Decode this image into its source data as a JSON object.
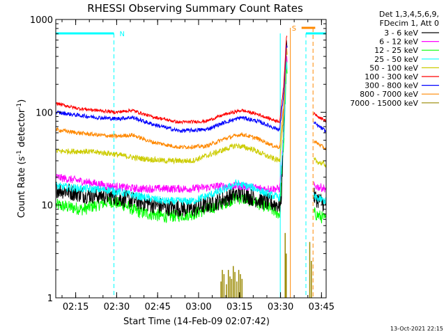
{
  "chart_data": {
    "type": "line",
    "title": "RHESSI Observing Summary Count Rates",
    "xlabel": "Start Time (14-Feb-09 02:07:42)",
    "ylabel_main": "Count Rate (s",
    "ylabel_sup1": "-1",
    "ylabel_mid": " detector",
    "ylabel_sup2": "-1",
    "ylabel_end": ")",
    "yscale": "log",
    "ylim": [
      1,
      1000
    ],
    "xlim_minutes": [
      0,
      99
    ],
    "y_ticks": [
      {
        "label": "1",
        "value": 1
      },
      {
        "label": "10",
        "value": 10
      },
      {
        "label": "100",
        "value": 100
      },
      {
        "label": "1000",
        "value": 1000
      }
    ],
    "x_ticks": [
      {
        "label": "02:15",
        "minutes": 7.3
      },
      {
        "label": "02:30",
        "minutes": 22.3
      },
      {
        "label": "02:45",
        "minutes": 37.3
      },
      {
        "label": "03:00",
        "minutes": 52.3
      },
      {
        "label": "03:15",
        "minutes": 67.3
      },
      {
        "label": "03:30",
        "minutes": 82.3
      },
      {
        "label": "03:45",
        "minutes": 97.3
      }
    ],
    "legend_header": [
      "Det 1,3,4,5,6,9,",
      "FDecim 1, Att 0"
    ],
    "series": [
      {
        "name": "3 - 6 keV",
        "color": "#000000",
        "baseline": [
          [
            0,
            15
          ],
          [
            10,
            13
          ],
          [
            20,
            12.5
          ],
          [
            30,
            11
          ],
          [
            40,
            9.5
          ],
          [
            50,
            9
          ],
          [
            60,
            11
          ],
          [
            64,
            12.5
          ],
          [
            68,
            13.5
          ],
          [
            72,
            12
          ],
          [
            76,
            11
          ],
          [
            82,
            10
          ],
          [
            82.5,
            10
          ],
          [
            83.5,
            80
          ],
          [
            84.5,
            600
          ],
          [
            87,
            100
          ],
          [
            89,
            20
          ],
          [
            95,
            12
          ],
          [
            99,
            10
          ]
        ],
        "gap": [
          84.8,
          94.5
        ],
        "noise": 0.22
      },
      {
        "name": "6 - 12 keV",
        "color": "#ff00ff",
        "baseline": [
          [
            0,
            20
          ],
          [
            10,
            18
          ],
          [
            20,
            16
          ],
          [
            30,
            15
          ],
          [
            40,
            15
          ],
          [
            50,
            15
          ],
          [
            60,
            16
          ],
          [
            68,
            16
          ],
          [
            76,
            15
          ],
          [
            82,
            15
          ],
          [
            83.5,
            60
          ],
          [
            84.5,
            400
          ],
          [
            87,
            60
          ],
          [
            89,
            18
          ],
          [
            95,
            16
          ],
          [
            99,
            15
          ]
        ],
        "gap": [
          84.8,
          94.5
        ],
        "noise": 0.1
      },
      {
        "name": "12 - 25 keV",
        "color": "#00ff00",
        "baseline": [
          [
            0,
            10
          ],
          [
            10,
            9
          ],
          [
            15,
            10
          ],
          [
            20,
            11
          ],
          [
            25,
            10
          ],
          [
            30,
            8.5
          ],
          [
            40,
            7.5
          ],
          [
            50,
            8
          ],
          [
            60,
            10
          ],
          [
            66,
            12
          ],
          [
            70,
            11.5
          ],
          [
            76,
            10
          ],
          [
            82,
            8
          ],
          [
            83.5,
            50
          ],
          [
            84.5,
            300
          ],
          [
            87,
            50
          ],
          [
            89,
            12
          ],
          [
            95,
            8
          ],
          [
            99,
            7
          ]
        ],
        "gap": [
          84.8,
          94.5
        ],
        "noise": 0.16
      },
      {
        "name": "25 - 50 keV",
        "color": "#00ffff",
        "baseline": [
          [
            0,
            16
          ],
          [
            10,
            15
          ],
          [
            20,
            14.5
          ],
          [
            30,
            12.5
          ],
          [
            40,
            11
          ],
          [
            50,
            11
          ],
          [
            60,
            14
          ],
          [
            66,
            17
          ],
          [
            72,
            15.5
          ],
          [
            78,
            13
          ],
          [
            82,
            12
          ],
          [
            83.5,
            60
          ],
          [
            84.5,
            350
          ],
          [
            87,
            60
          ],
          [
            89,
            16
          ],
          [
            95,
            12
          ],
          [
            99,
            11
          ]
        ],
        "gap": [
          84.8,
          94.5
        ],
        "noise": 0.1
      },
      {
        "name": "50 - 100 keV",
        "color": "#cccc00",
        "baseline": [
          [
            0,
            38
          ],
          [
            10,
            38
          ],
          [
            20,
            36
          ],
          [
            30,
            32
          ],
          [
            40,
            30
          ],
          [
            50,
            30
          ],
          [
            60,
            38
          ],
          [
            66,
            44
          ],
          [
            72,
            40
          ],
          [
            78,
            33
          ],
          [
            82,
            30
          ],
          [
            83.5,
            100
          ],
          [
            84.5,
            450
          ],
          [
            87,
            100
          ],
          [
            89,
            38
          ],
          [
            95,
            30
          ],
          [
            99,
            27
          ]
        ],
        "gap": [
          84.8,
          94.5
        ],
        "noise": 0.07
      },
      {
        "name": "100 - 300 keV",
        "color": "#ff0000",
        "baseline": [
          [
            0,
            125
          ],
          [
            8,
            110
          ],
          [
            15,
            105
          ],
          [
            22,
            100
          ],
          [
            28,
            105
          ],
          [
            35,
            90
          ],
          [
            45,
            78
          ],
          [
            55,
            80
          ],
          [
            62,
            95
          ],
          [
            68,
            105
          ],
          [
            74,
            95
          ],
          [
            80,
            82
          ],
          [
            82,
            80
          ],
          [
            83.5,
            200
          ],
          [
            84.5,
            700
          ],
          [
            87,
            200
          ],
          [
            89,
            120
          ],
          [
            95,
            95
          ],
          [
            99,
            80
          ]
        ],
        "gap": [
          84.8,
          94.5
        ],
        "noise": 0.04
      },
      {
        "name": "300 - 800 keV",
        "color": "#0000ff",
        "baseline": [
          [
            0,
            100
          ],
          [
            8,
            93
          ],
          [
            15,
            88
          ],
          [
            22,
            85
          ],
          [
            28,
            88
          ],
          [
            35,
            75
          ],
          [
            45,
            63
          ],
          [
            55,
            65
          ],
          [
            62,
            78
          ],
          [
            68,
            88
          ],
          [
            74,
            80
          ],
          [
            80,
            68
          ],
          [
            82,
            65
          ],
          [
            83.5,
            160
          ],
          [
            84.5,
            550
          ],
          [
            87,
            160
          ],
          [
            89,
            95
          ],
          [
            95,
            75
          ],
          [
            99,
            62
          ]
        ],
        "gap": [
          84.8,
          94.5
        ],
        "noise": 0.05
      },
      {
        "name": "800 - 7000 keV",
        "color": "#ff8800",
        "baseline": [
          [
            0,
            65
          ],
          [
            8,
            60
          ],
          [
            15,
            57
          ],
          [
            22,
            55
          ],
          [
            28,
            57
          ],
          [
            35,
            48
          ],
          [
            45,
            42
          ],
          [
            55,
            43
          ],
          [
            62,
            52
          ],
          [
            68,
            58
          ],
          [
            74,
            52
          ],
          [
            80,
            43
          ],
          [
            82,
            42
          ],
          [
            83.5,
            120
          ],
          [
            84.5,
            500
          ],
          [
            87,
            120
          ],
          [
            89,
            60
          ],
          [
            95,
            48
          ],
          [
            99,
            40
          ]
        ],
        "gap": [
          84.8,
          94.5
        ],
        "noise": 0.05
      },
      {
        "name": "7000 - 15000 keV",
        "color": "#998800",
        "baseline": [],
        "gap": [
          84.8,
          94.5
        ],
        "noise": 0
      }
    ],
    "brown_spikes": [
      [
        60.5,
        1.5
      ],
      [
        61,
        2.0
      ],
      [
        61.6,
        1.8
      ],
      [
        62.5,
        1.4
      ],
      [
        63.2,
        2.0
      ],
      [
        63.8,
        1.7
      ],
      [
        64.4,
        1.6
      ],
      [
        65,
        2.2
      ],
      [
        65.6,
        1.9
      ],
      [
        66.3,
        1.5
      ],
      [
        67,
        2.0
      ],
      [
        67.6,
        1.8
      ],
      [
        68.2,
        1.6
      ],
      [
        84,
        5.0
      ],
      [
        84.4,
        3.0
      ],
      [
        93,
        4.0
      ],
      [
        93.6,
        2.5
      ]
    ],
    "flags": {
      "night_label": "N",
      "saa_label": "S",
      "night_intervals": [
        [
          0,
          21.3
        ],
        [
          91.6,
          99
        ]
      ],
      "saa_interval": [
        [
          90,
          95
        ]
      ],
      "eclipse_dashes": [
        21.3,
        91.6
      ],
      "orange_lines": [
        85.9,
        94.2
      ]
    }
  },
  "footer": {
    "timestamp": "13-Oct-2021 22:15"
  }
}
